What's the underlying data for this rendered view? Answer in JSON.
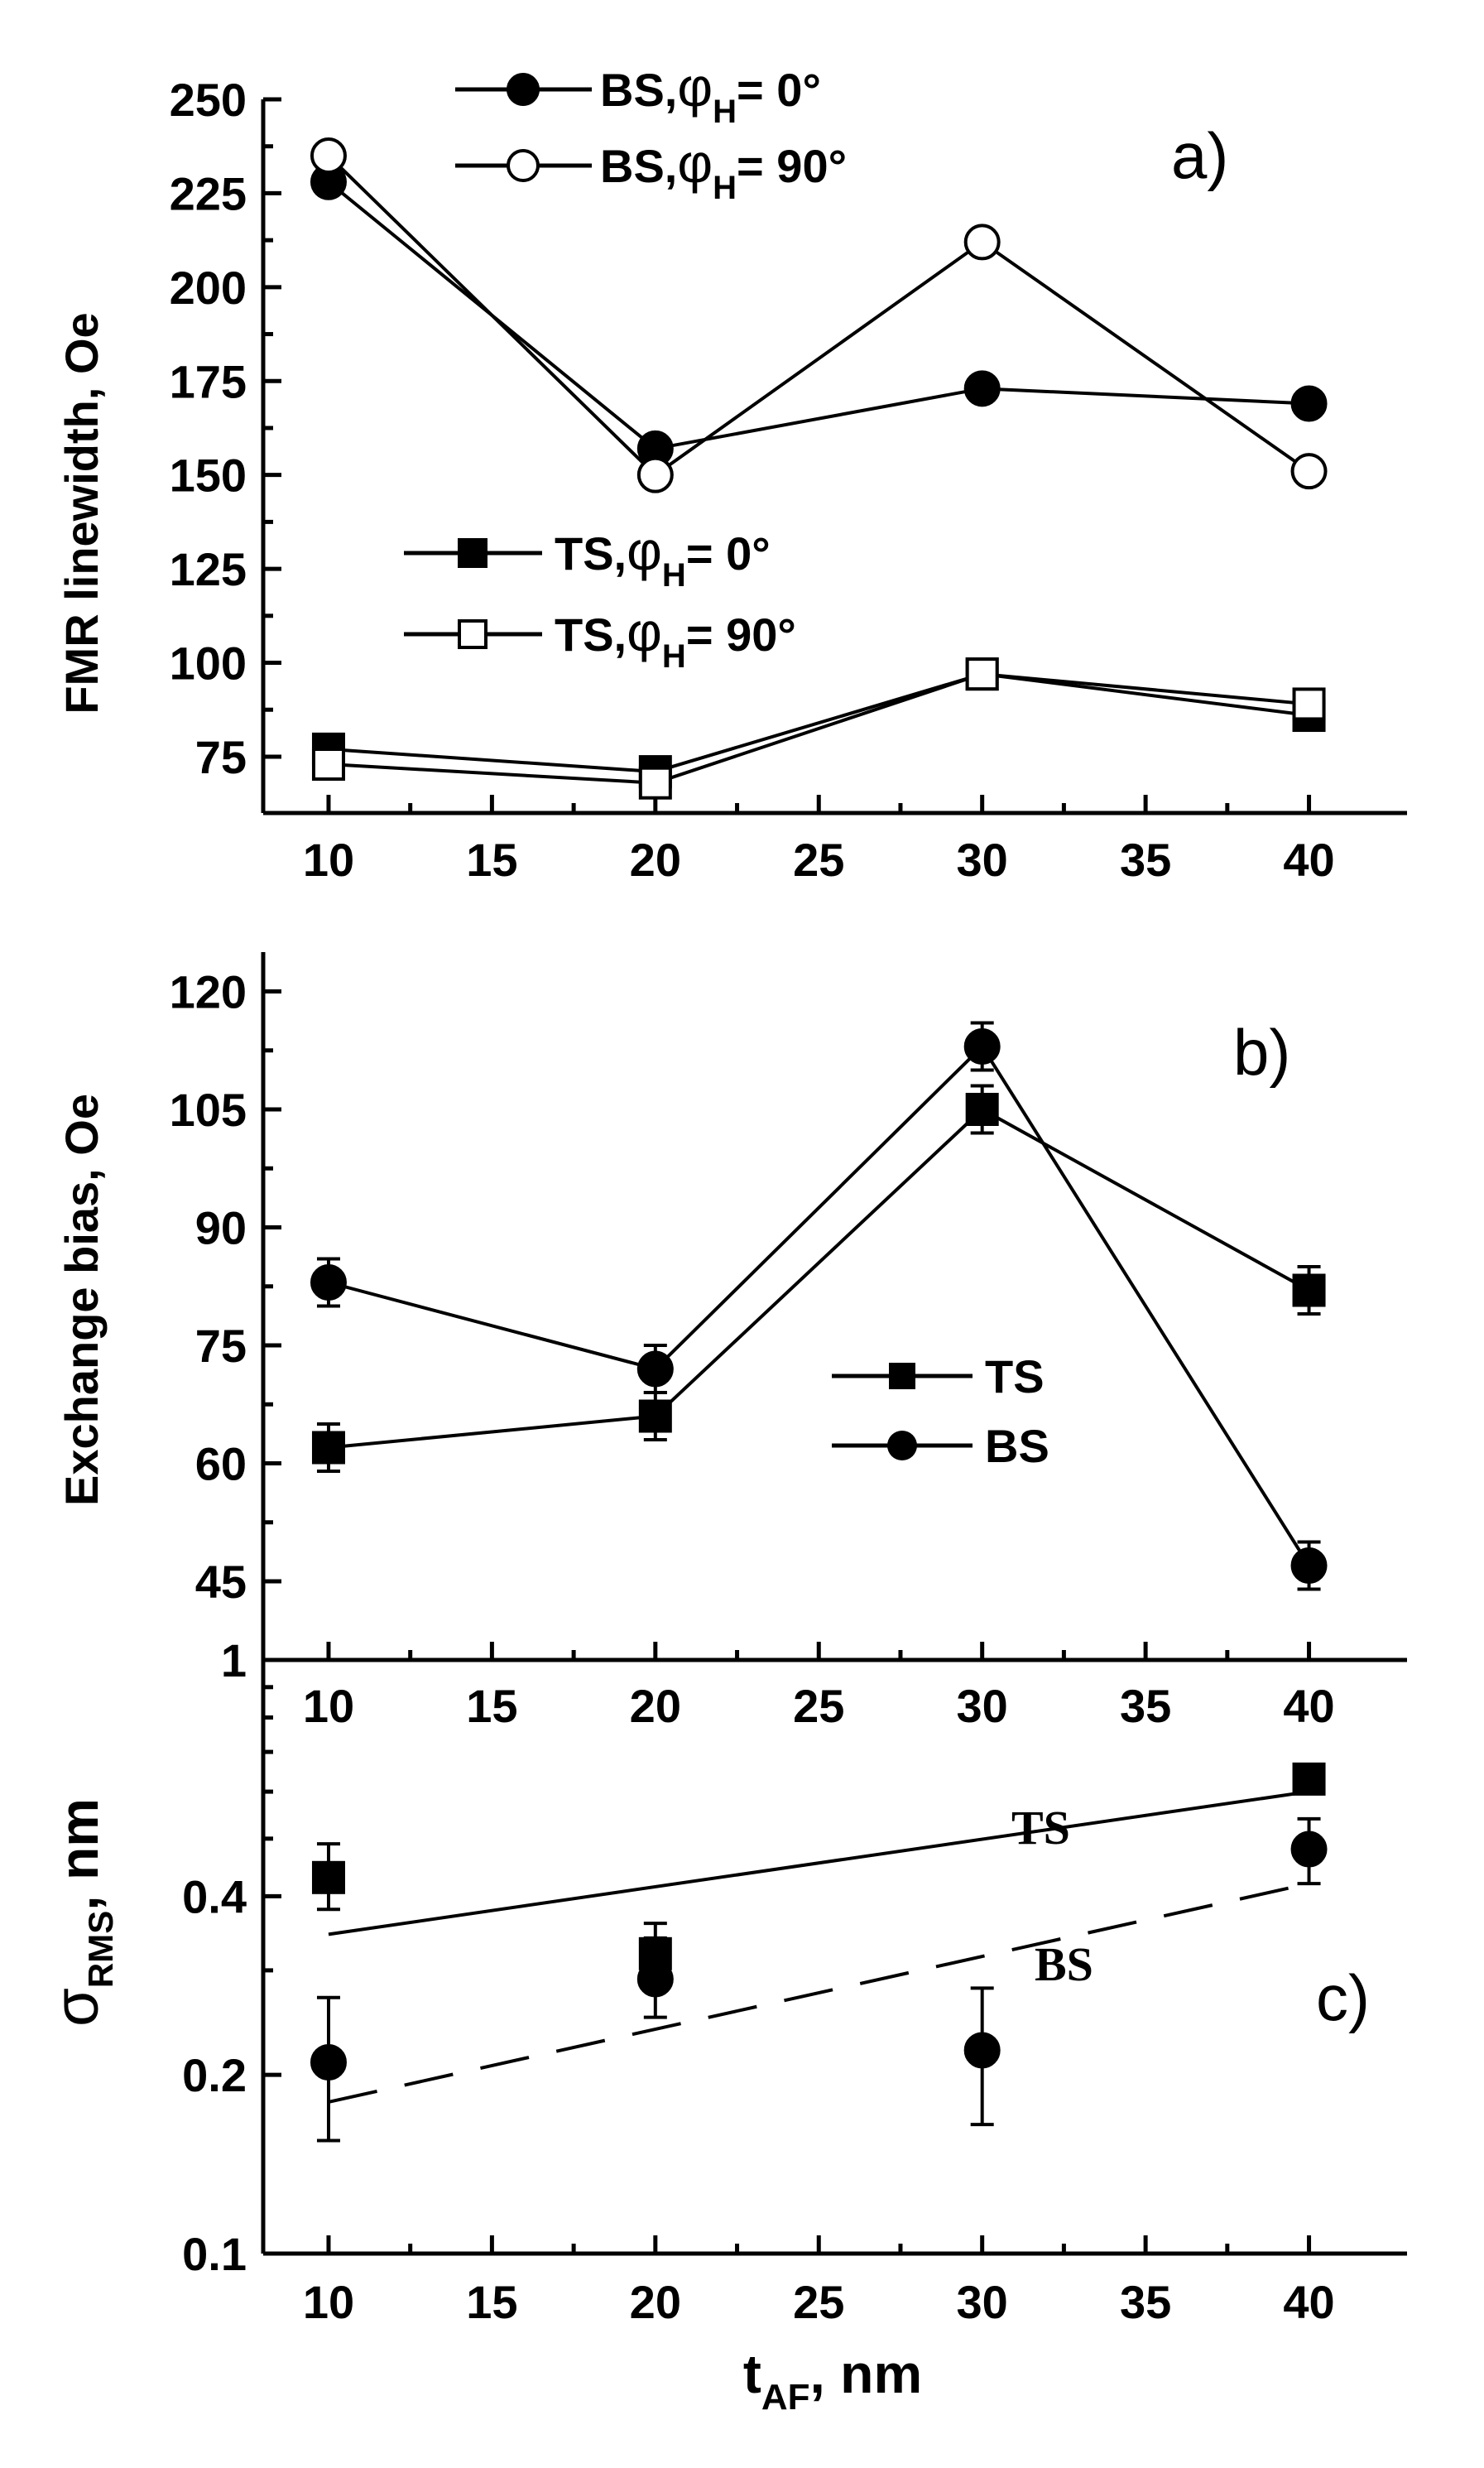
{
  "chart_data": [
    {
      "id": "a",
      "type": "line",
      "panel_label": "a)",
      "ylabel": "FMR linewidth, Oe",
      "xlabel": "",
      "xlim": [
        8,
        43
      ],
      "ylim": [
        60,
        250
      ],
      "x_ticks": [
        10,
        15,
        20,
        25,
        30,
        35,
        40
      ],
      "y_ticks": [
        75,
        100,
        125,
        150,
        175,
        200,
        225,
        250
      ],
      "x": [
        10,
        20,
        30,
        40
      ],
      "series": [
        {
          "name": "BS, φH = 0°",
          "legend_main": "BS,",
          "legend_phi": "φ",
          "legend_sub": "H",
          "legend_rest": "= 0°",
          "marker": "circle-filled",
          "values": [
            228,
            157,
            173,
            169
          ]
        },
        {
          "name": "BS, φH = 90°",
          "legend_main": "BS,",
          "legend_phi": "φ",
          "legend_sub": "H",
          "legend_rest": "= 90°",
          "marker": "circle-open",
          "values": [
            235,
            150,
            212,
            151
          ]
        },
        {
          "name": "TS, φH = 0°",
          "legend_main": "TS,",
          "legend_phi": "φ",
          "legend_sub": "H",
          "legend_rest": "= 0°",
          "marker": "square-filled",
          "values": [
            77,
            71,
            97,
            86
          ]
        },
        {
          "name": "TS, φH = 90°",
          "legend_main": "TS,",
          "legend_phi": "φ",
          "legend_sub": "H",
          "legend_rest": "= 90°",
          "marker": "square-open",
          "values": [
            73,
            68,
            97,
            89
          ]
        }
      ]
    },
    {
      "id": "b",
      "type": "line",
      "panel_label": "b)",
      "ylabel": "Exchange bias, Oe",
      "xlabel": "",
      "xlim": [
        8,
        43
      ],
      "ylim": [
        35,
        125
      ],
      "x_ticks": [
        10,
        15,
        20,
        25,
        30,
        35,
        40
      ],
      "y_ticks": [
        45,
        60,
        75,
        90,
        105,
        120
      ],
      "x": [
        10,
        20,
        30,
        40
      ],
      "series": [
        {
          "name": "TS",
          "marker": "square-filled",
          "values": [
            62,
            66,
            105,
            82
          ],
          "errors": [
            3,
            3,
            3,
            3
          ]
        },
        {
          "name": "BS",
          "marker": "circle-filled",
          "values": [
            83,
            72,
            113,
            47
          ],
          "errors": [
            3,
            3,
            3,
            3
          ]
        }
      ]
    },
    {
      "id": "c",
      "type": "scatter",
      "panel_label": "c)",
      "ylabel_main": "σ",
      "ylabel_sub": "RMS",
      "ylabel_rest": ", nm",
      "xlabel_main": "t",
      "xlabel_sub": "AF",
      "xlabel_rest": ", nm",
      "yscale": "log",
      "xlim": [
        8,
        43
      ],
      "ylim": [
        0.1,
        1
      ],
      "x_ticks": [
        10,
        15,
        20,
        25,
        30,
        35,
        40
      ],
      "y_ticks": [
        0.1,
        0.2,
        0.4,
        1
      ],
      "y_tick_labels": [
        "0.1",
        "0.2",
        "0.4",
        "1"
      ],
      "series": [
        {
          "name": "TS",
          "marker": "square-filled",
          "x": [
            10,
            20,
            40
          ],
          "values": [
            0.43,
            0.32,
            0.63
          ],
          "err_low": [
            0.38,
            0.28,
            0.6
          ],
          "err_high": [
            0.49,
            0.36,
            0.66
          ],
          "fit": {
            "style": "solid",
            "x": [
              10,
              40
            ],
            "y": [
              0.345,
              0.6
            ]
          }
        },
        {
          "name": "BS",
          "marker": "circle-filled",
          "x": [
            10,
            20,
            30,
            40
          ],
          "values": [
            0.21,
            0.29,
            0.22,
            0.48
          ],
          "err_low": [
            0.155,
            0.25,
            0.165,
            0.42
          ],
          "err_high": [
            0.27,
            0.34,
            0.28,
            0.54
          ],
          "fit": {
            "style": "dashed",
            "x": [
              10,
              40
            ],
            "y": [
              0.18,
              0.42
            ]
          }
        }
      ],
      "annotations": [
        "TS",
        "BS"
      ]
    }
  ]
}
